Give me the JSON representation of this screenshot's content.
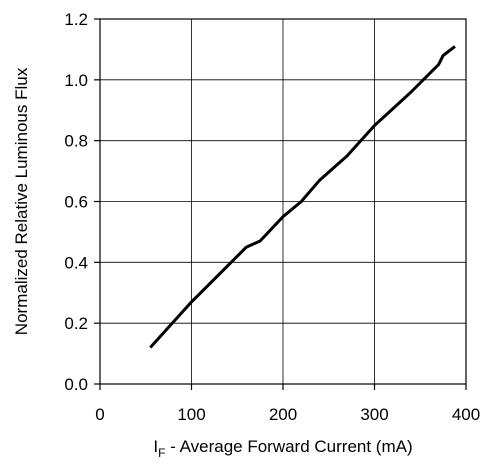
{
  "chart_data": {
    "type": "line",
    "title": "",
    "xlabel": {
      "main": "I",
      "subscript": "F",
      "rest": " - Average Forward Current (mA)"
    },
    "ylabel": "Normalized Relative Luminous Flux",
    "xlim": [
      0,
      400
    ],
    "ylim": [
      0.0,
      1.2
    ],
    "xticks": [
      0,
      100,
      200,
      300,
      400
    ],
    "yticks": [
      0.0,
      0.2,
      0.4,
      0.6,
      0.8,
      1.0,
      1.2
    ],
    "xtick_labels": [
      "0",
      "100",
      "200",
      "300",
      "400"
    ],
    "ytick_labels": [
      "0.0",
      "0.2",
      "0.4",
      "0.6",
      "0.8",
      "1.0",
      "1.2"
    ],
    "grid": true,
    "series": [
      {
        "x": [
          55,
          100,
          160,
          175,
          200,
          220,
          240,
          270,
          300,
          340,
          360,
          370,
          375,
          388
        ],
        "y": [
          0.12,
          0.27,
          0.45,
          0.47,
          0.55,
          0.6,
          0.67,
          0.75,
          0.85,
          0.96,
          1.02,
          1.05,
          1.08,
          1.11
        ]
      }
    ],
    "colors": {
      "line": "#000000",
      "grid": "#000000",
      "axis": "#000000"
    }
  }
}
